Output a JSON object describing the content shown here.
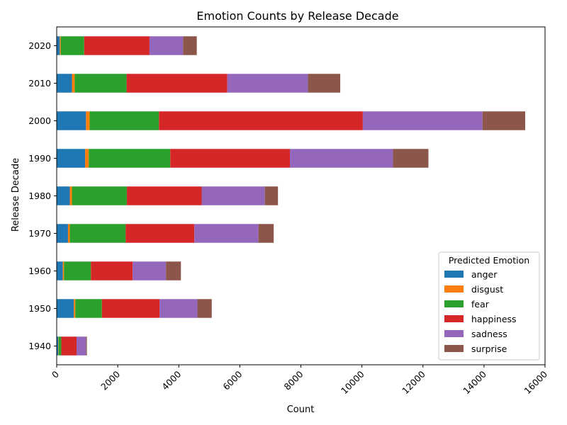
{
  "chart_data": {
    "type": "bar",
    "orientation": "horizontal",
    "stacked": true,
    "title": "Emotion Counts by Release Decade",
    "xlabel": "Count",
    "ylabel": "Release Decade",
    "xlim": [
      0,
      16000
    ],
    "xticks": [
      "0",
      "2000",
      "4000",
      "6000",
      "8000",
      "10000",
      "12000",
      "14000",
      "16000"
    ],
    "tick_rotation_deg": 45,
    "grid": false,
    "legend_title": "Predicted Emotion",
    "legend_position": "lower-right",
    "categories": [
      "1940",
      "1950",
      "1960",
      "1970",
      "1980",
      "1990",
      "2000",
      "2010",
      "2020"
    ],
    "series": [
      {
        "name": "anger",
        "color": "#1f77b4",
        "values": [
          50,
          560,
          200,
          370,
          430,
          930,
          960,
          500,
          100
        ]
      },
      {
        "name": "disgust",
        "color": "#ff7f0e",
        "values": [
          10,
          50,
          40,
          60,
          70,
          120,
          120,
          90,
          30
        ]
      },
      {
        "name": "fear",
        "color": "#2ca02c",
        "values": [
          90,
          870,
          880,
          1830,
          1800,
          2670,
          2270,
          1700,
          770
        ]
      },
      {
        "name": "happiness",
        "color": "#d62728",
        "values": [
          500,
          1890,
          1370,
          2250,
          2450,
          3920,
          6680,
          3300,
          2140
        ]
      },
      {
        "name": "sadness",
        "color": "#9467bd",
        "values": [
          310,
          1240,
          1090,
          2100,
          2070,
          3380,
          3920,
          2640,
          1100
        ]
      },
      {
        "name": "surprise",
        "color": "#8c564b",
        "values": [
          30,
          470,
          490,
          500,
          430,
          1160,
          1400,
          1060,
          450
        ]
      }
    ]
  }
}
